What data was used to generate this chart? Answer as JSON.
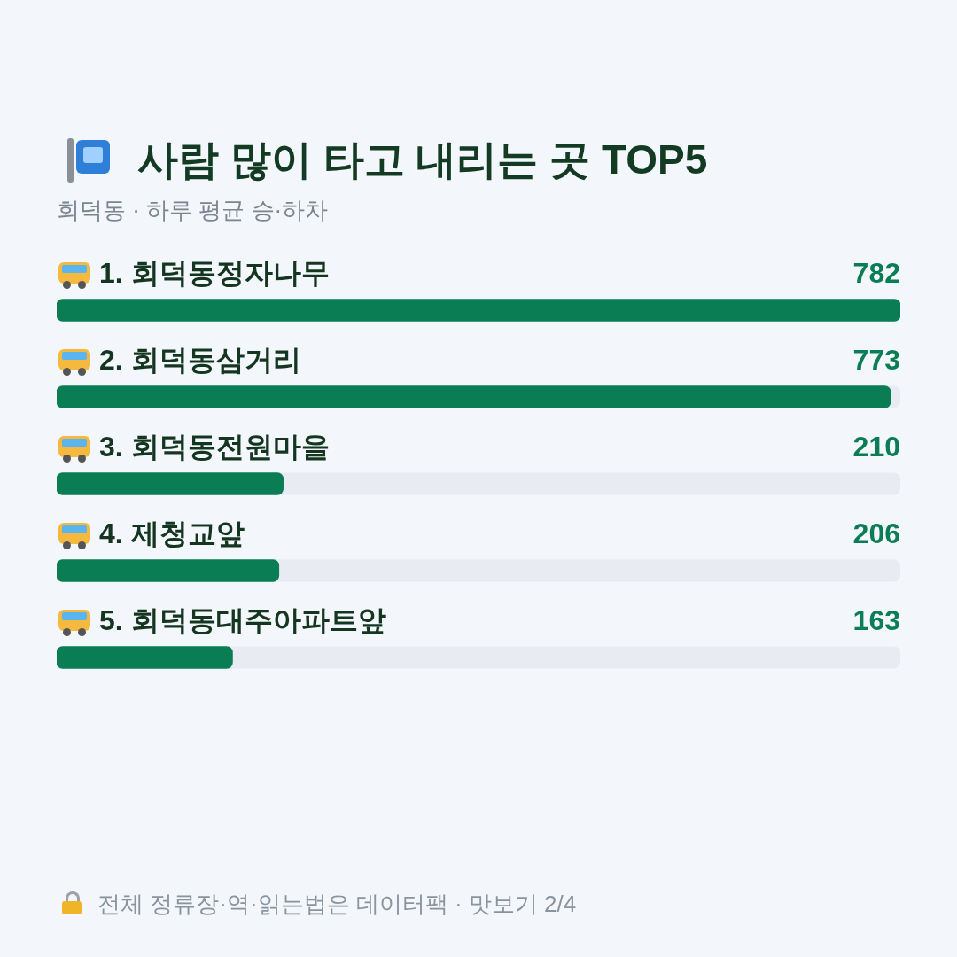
{
  "chart_data": {
    "type": "bar",
    "orientation": "horizontal",
    "title": "사람 많이 타고 내리는 곳 TOP5",
    "subtitle": "회덕동 · 하루 평균 승·하차",
    "categories": [
      "1. 회덕동정자나무",
      "2. 회덕동삼거리",
      "3. 회덕동전원마을",
      "4. 제청교앞",
      "5. 회덕동대주아파트앞"
    ],
    "values": [
      782,
      773,
      210,
      206,
      163
    ],
    "color": "#0b7d55",
    "data_labels": true,
    "legend": false,
    "annotations": [
      "전체 정류장·역·읽는법은 데이터팩 · 맛보기 2/4"
    ]
  }
}
